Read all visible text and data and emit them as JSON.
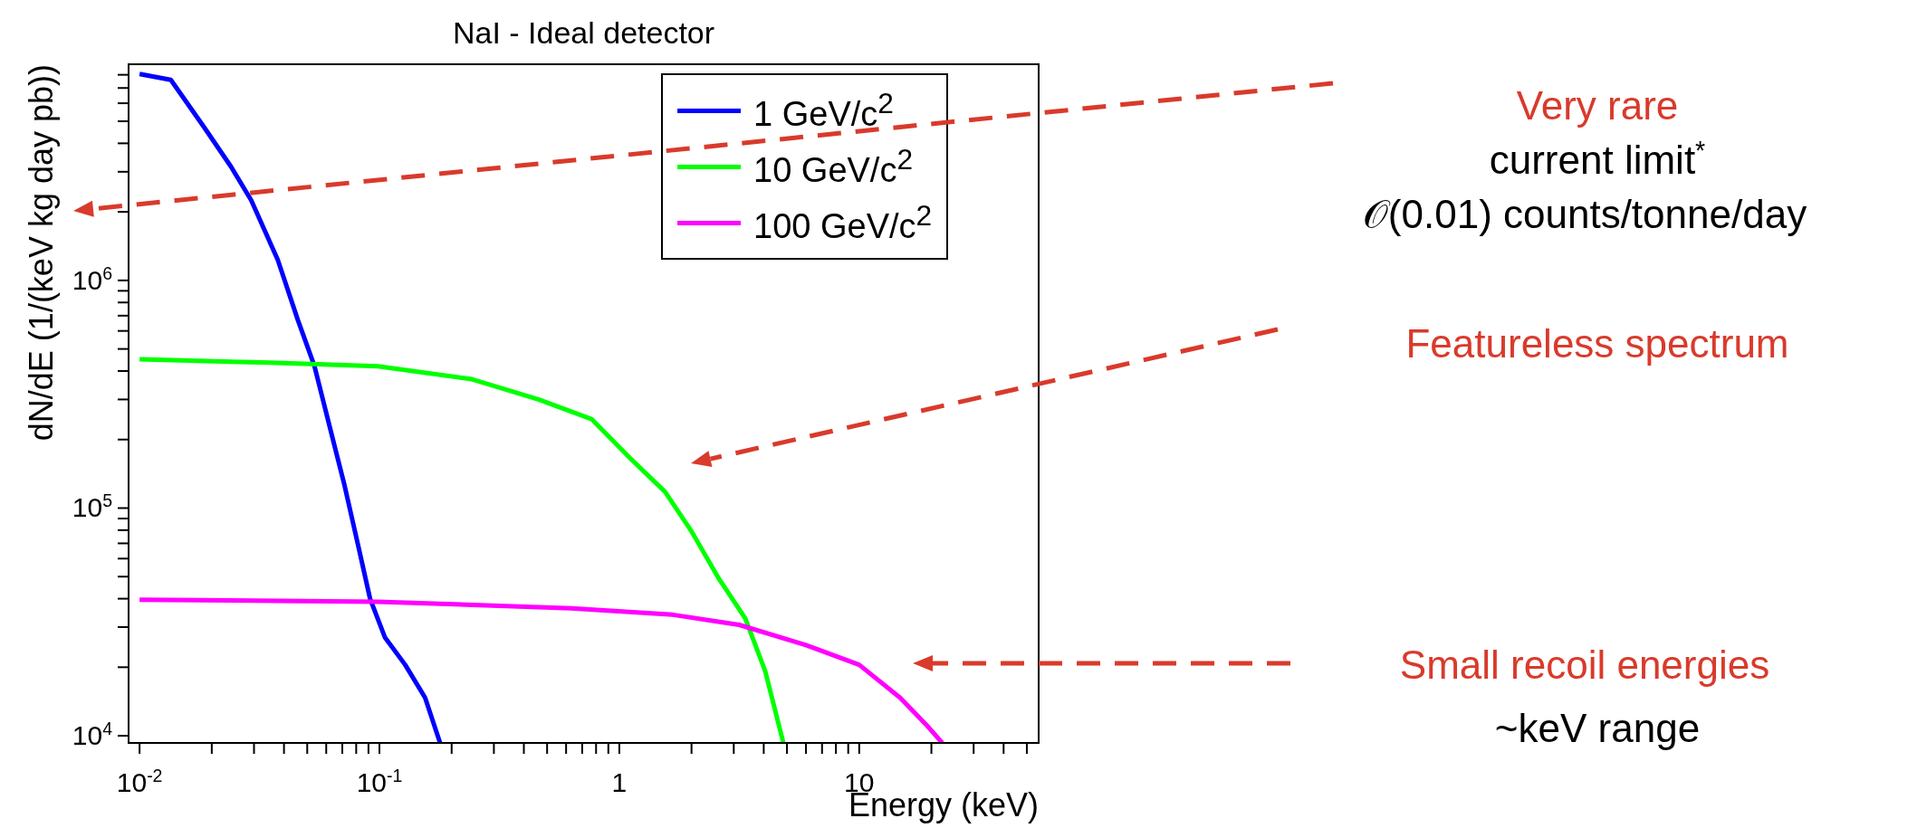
{
  "chart_data": {
    "type": "line",
    "title": "NaI - Ideal detector",
    "xlabel": "Energy (keV)",
    "ylabel": "dN/dE (1/(keV kg day pb))",
    "log": "xy",
    "legend": "top right",
    "line_style": "solid",
    "xlim": [
      0.009,
      56
    ],
    "ylim": [
      9300,
      8900000
    ],
    "xticks": [
      {
        "value": 0.01,
        "label": "10$^{-2}$"
      },
      {
        "value": 0.02,
        "label": null
      },
      {
        "value": 0.03,
        "label": null
      },
      {
        "value": 0.04,
        "label": null
      },
      {
        "value": 0.05,
        "label": null
      },
      {
        "value": 0.06,
        "label": null
      },
      {
        "value": 0.07,
        "label": null
      },
      {
        "value": 0.08,
        "label": null
      },
      {
        "value": 0.09,
        "label": null
      },
      {
        "value": 0.1,
        "label": "10$^{-1}$"
      },
      {
        "value": 0.2,
        "label": null
      },
      {
        "value": 0.3,
        "label": null
      },
      {
        "value": 0.4,
        "label": null
      },
      {
        "value": 0.5,
        "label": null
      },
      {
        "value": 0.6,
        "label": null
      },
      {
        "value": 0.7,
        "label": null
      },
      {
        "value": 0.8,
        "label": null
      },
      {
        "value": 0.9,
        "label": null
      },
      1,
      {
        "value": 2,
        "label": null
      },
      {
        "value": 3,
        "label": null
      },
      {
        "value": 4,
        "label": null
      },
      {
        "value": 5,
        "label": null
      },
      {
        "value": 6,
        "label": null
      },
      {
        "value": 7,
        "label": null
      },
      {
        "value": 8,
        "label": null
      },
      {
        "value": 9,
        "label": null
      },
      10,
      {
        "value": 20,
        "label": null
      },
      {
        "value": 30,
        "label": null
      },
      {
        "value": 40,
        "label": null
      },
      {
        "value": 50,
        "label": null
      }
    ],
    "yticks": [
      {
        "value": 10000,
        "label": "10$^{4}$"
      },
      {
        "value": 20000,
        "label": null
      },
      {
        "value": 30000,
        "label": null
      },
      {
        "value": 40000,
        "label": null
      },
      {
        "value": 50000,
        "label": null
      },
      {
        "value": 60000,
        "label": null
      },
      {
        "value": 70000,
        "label": null
      },
      {
        "value": 80000,
        "label": null
      },
      {
        "value": 90000,
        "label": null
      },
      {
        "value": 100000,
        "label": "10$^{5}$"
      },
      {
        "value": 200000,
        "label": null
      },
      {
        "value": 300000,
        "label": null
      },
      {
        "value": 400000,
        "label": null
      },
      {
        "value": 500000,
        "label": null
      },
      {
        "value": 600000,
        "label": null
      },
      {
        "value": 700000,
        "label": null
      },
      {
        "value": 800000,
        "label": null
      },
      {
        "value": 900000,
        "label": null
      },
      {
        "value": 1000000,
        "label": "10$^{6}$"
      },
      {
        "value": 2000000,
        "label": null
      },
      {
        "value": 3000000,
        "label": null
      },
      {
        "value": 4000000,
        "label": null
      },
      {
        "value": 5000000,
        "label": null
      },
      {
        "value": 6000000,
        "label": null
      },
      {
        "value": 7000000,
        "label": null
      },
      {
        "value": 8000000,
        "label": null
      }
    ],
    "series": [
      {
        "name": "1 GeV/c$^{2}$",
        "color": "#0000ff",
        "x": [
          0.01,
          0.0135,
          0.0186,
          0.0241,
          0.0292,
          0.0377,
          0.0457,
          0.0536,
          0.0629,
          0.0715,
          0.0814,
          0.0914,
          0.1055,
          0.128,
          0.155,
          0.179
        ],
        "values": [
          8070000,
          7600000,
          4700000,
          3150000,
          2250000,
          1230000,
          670000,
          420000,
          215000,
          126000,
          69000,
          40000,
          27000,
          20500,
          14700,
          9300
        ]
      },
      {
        "name": "10 GeV/c$^{2}$",
        "color": "#00ff00",
        "x": [
          0.01,
          0.0353,
          0.0985,
          0.243,
          0.46,
          0.766,
          1.12,
          1.55,
          2.0,
          2.6,
          3.35,
          4.06,
          4.83
        ],
        "values": [
          450000,
          435000,
          420000,
          368000,
          300000,
          246000,
          164000,
          118000,
          79000,
          49000,
          32800,
          19200,
          9300
        ]
      },
      {
        "name": "100 GeV/c$^{2}$",
        "color": "#ff00ff",
        "x": [
          0.01,
          0.0985,
          0.633,
          1.67,
          3.16,
          6.0,
          10,
          14.8,
          19.0,
          22.2
        ],
        "values": [
          39600,
          38800,
          36300,
          34000,
          30700,
          25000,
          20500,
          14700,
          11200,
          9300
        ]
      }
    ],
    "annotations": [
      "Very rare",
      "current limit$^{*}$",
      "𝒪(0.01) counts/tonne/day",
      "Featureless spectrum",
      "Small recoil energies",
      "~keV range"
    ]
  }
}
